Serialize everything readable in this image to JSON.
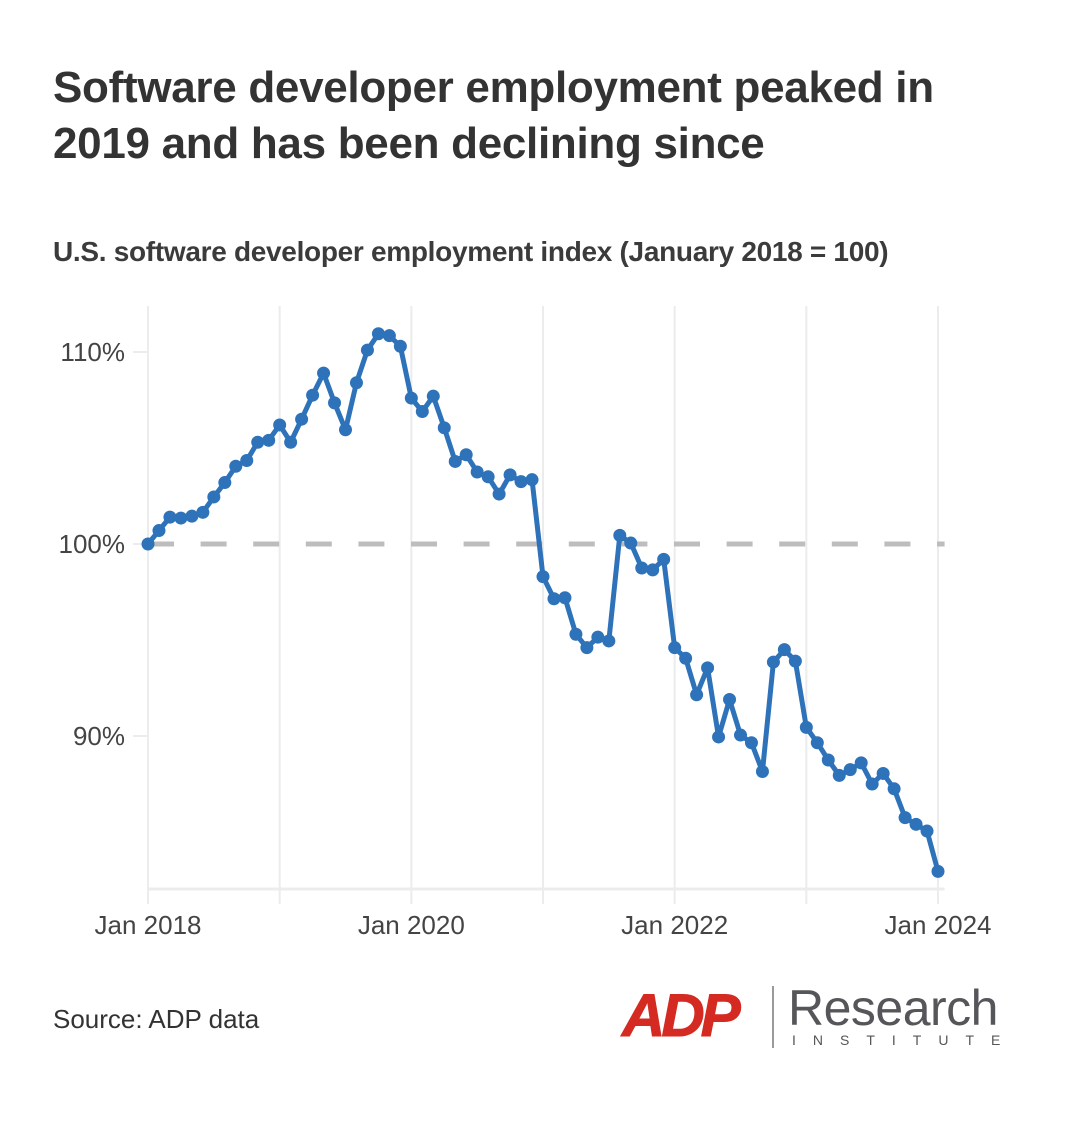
{
  "header": {
    "title": "Software developer employment peaked in 2019 and has been declining since",
    "subtitle": "U.S. software developer employment index (January 2018 = 100)"
  },
  "footer": {
    "source": "Source: ADP data",
    "logo": {
      "brand": "ADP",
      "name": "Research",
      "tagline": "INSTITUTE"
    }
  },
  "colors": {
    "line": "#2e72b9",
    "reference": "#bdbdbd",
    "grid": "#ececec",
    "logo_red": "#d42a22",
    "logo_gray": "#555659"
  },
  "chart_data": {
    "type": "line",
    "title": "Software developer employment peaked in 2019 and has been declining since",
    "subtitle": "U.S. software developer employment index (January 2018 = 100)",
    "xlabel": "",
    "ylabel": "",
    "x_start": "2018-01",
    "x_frequency": "monthly",
    "x_ticks": [
      {
        "month_index": 0,
        "label": "Jan 2018"
      },
      {
        "month_index": 12,
        "label": ""
      },
      {
        "month_index": 24,
        "label": "Jan 2020"
      },
      {
        "month_index": 36,
        "label": ""
      },
      {
        "month_index": 48,
        "label": "Jan 2022"
      },
      {
        "month_index": 60,
        "label": ""
      },
      {
        "month_index": 72,
        "label": "Jan 2024"
      }
    ],
    "y_ticks": [
      {
        "value": 110,
        "label": "110%"
      },
      {
        "value": 100,
        "label": "100%"
      },
      {
        "value": 90,
        "label": "90%"
      }
    ],
    "ylim": [
      82.1,
      112.7
    ],
    "xlim": [
      0,
      72.6
    ],
    "reference_line": {
      "value": 100,
      "style": "dashed"
    },
    "grid": "vertical",
    "legend": "none",
    "series": [
      {
        "name": "Employment index",
        "values": [
          100.0,
          100.7,
          101.4,
          101.35,
          101.45,
          101.65,
          102.45,
          103.2,
          104.05,
          104.35,
          105.3,
          105.4,
          106.2,
          105.3,
          106.5,
          107.75,
          108.9,
          107.35,
          105.95,
          108.4,
          110.1,
          110.95,
          110.85,
          110.3,
          107.6,
          106.9,
          107.7,
          106.05,
          104.3,
          104.65,
          103.75,
          103.5,
          102.6,
          103.6,
          103.25,
          103.35,
          98.3,
          97.15,
          97.2,
          95.3,
          94.6,
          95.15,
          94.95,
          100.45,
          100.05,
          98.75,
          98.65,
          99.2,
          94.6,
          94.05,
          92.15,
          93.55,
          89.95,
          91.9,
          90.05,
          89.65,
          88.15,
          93.85,
          94.5,
          93.9,
          90.45,
          89.65,
          88.75,
          87.95,
          88.25,
          88.6,
          87.5,
          88.05,
          87.25,
          85.75,
          85.4,
          85.05,
          82.95
        ]
      }
    ]
  }
}
